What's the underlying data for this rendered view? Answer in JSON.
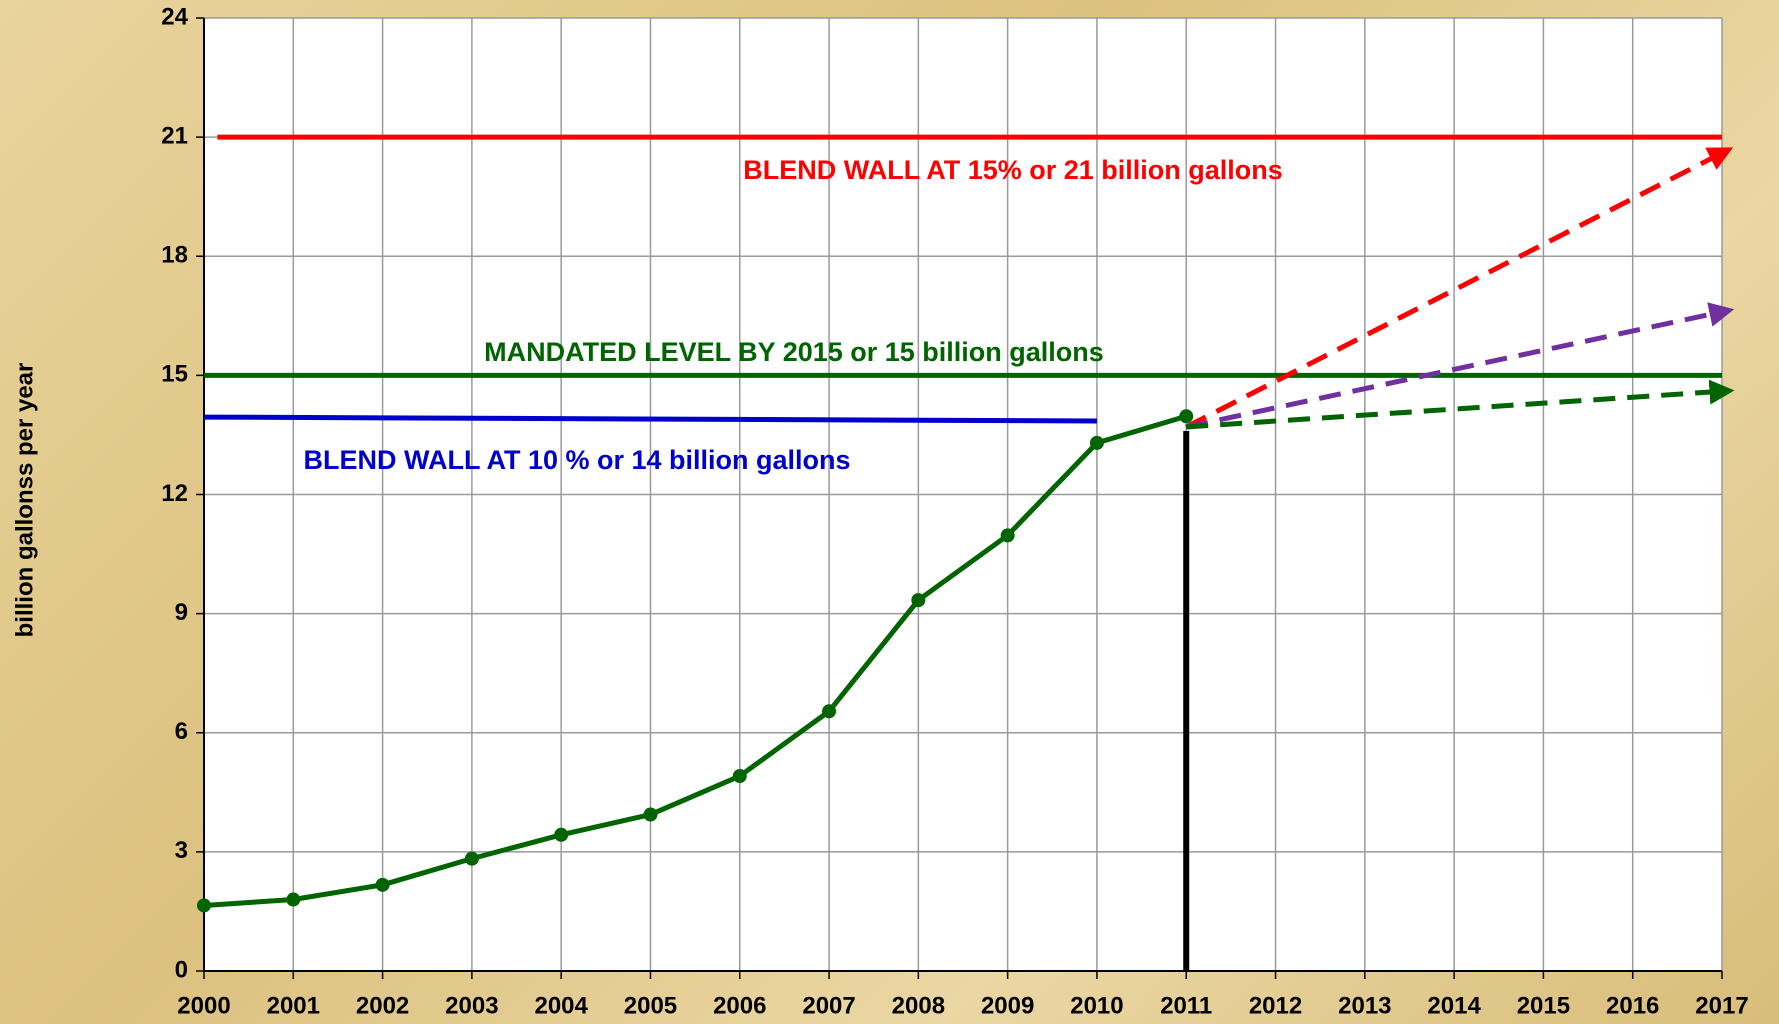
{
  "chart_data": {
    "type": "line",
    "y_label": "billion gallonss per year",
    "xlim": [
      2000,
      2017
    ],
    "xticks": [
      2000,
      2001,
      2002,
      2003,
      2004,
      2005,
      2006,
      2007,
      2008,
      2009,
      2010,
      2011,
      2012,
      2013,
      2014,
      2015,
      2016,
      2017
    ],
    "ylim": [
      0,
      24
    ],
    "yticks": [
      0,
      3,
      6,
      9,
      12,
      15,
      18,
      21,
      24
    ],
    "grid": true,
    "series": [
      {
        "color": "#006400",
        "markers": true,
        "width": 5,
        "x": [
          2000,
          2001,
          2002,
          2003,
          2004,
          2005,
          2006,
          2007,
          2008,
          2009,
          2010,
          2011
        ],
        "values": [
          1.65,
          1.8,
          2.17,
          2.83,
          3.43,
          3.94,
          4.91,
          6.54,
          9.34,
          10.97,
          13.3,
          13.97
        ]
      },
      {
        "color": "#ff0000",
        "width": 5,
        "x": [
          2000.15,
          2017
        ],
        "values": [
          21,
          21
        ]
      },
      {
        "color": "#006400",
        "width": 5,
        "x": [
          2000,
          2017
        ],
        "values": [
          15,
          15
        ]
      },
      {
        "color": "#0000cc",
        "width": 5,
        "x": [
          2000,
          2010
        ],
        "values": [
          13.95,
          13.85
        ]
      },
      {
        "color": "#ff0000",
        "width": 5,
        "dashed": true,
        "arrow": true,
        "x": [
          2011,
          2017
        ],
        "values": [
          13.7,
          20.6
        ]
      },
      {
        "color": "#7030a0",
        "width": 5,
        "dashed": true,
        "arrow": true,
        "x": [
          2011,
          2017
        ],
        "values": [
          13.7,
          16.6
        ]
      },
      {
        "color": "#006400",
        "width": 5,
        "dashed": true,
        "arrow": true,
        "x": [
          2011,
          2017
        ],
        "values": [
          13.7,
          14.6
        ]
      },
      {
        "color": "#000000",
        "width": 6,
        "x": [
          2011,
          2011
        ],
        "values": [
          0,
          13.6
        ]
      }
    ],
    "annotations": [
      {
        "text": "BLEND WALL AT 15% or 21 billion gallons",
        "color": "#ff0000"
      },
      {
        "text": "MANDATED LEVEL BY 2015 or 15 billion gallons",
        "color": "#006400"
      },
      {
        "text": "BLEND WALL AT 10 % or 14 billion gallons",
        "color": "#0000cc"
      }
    ]
  }
}
